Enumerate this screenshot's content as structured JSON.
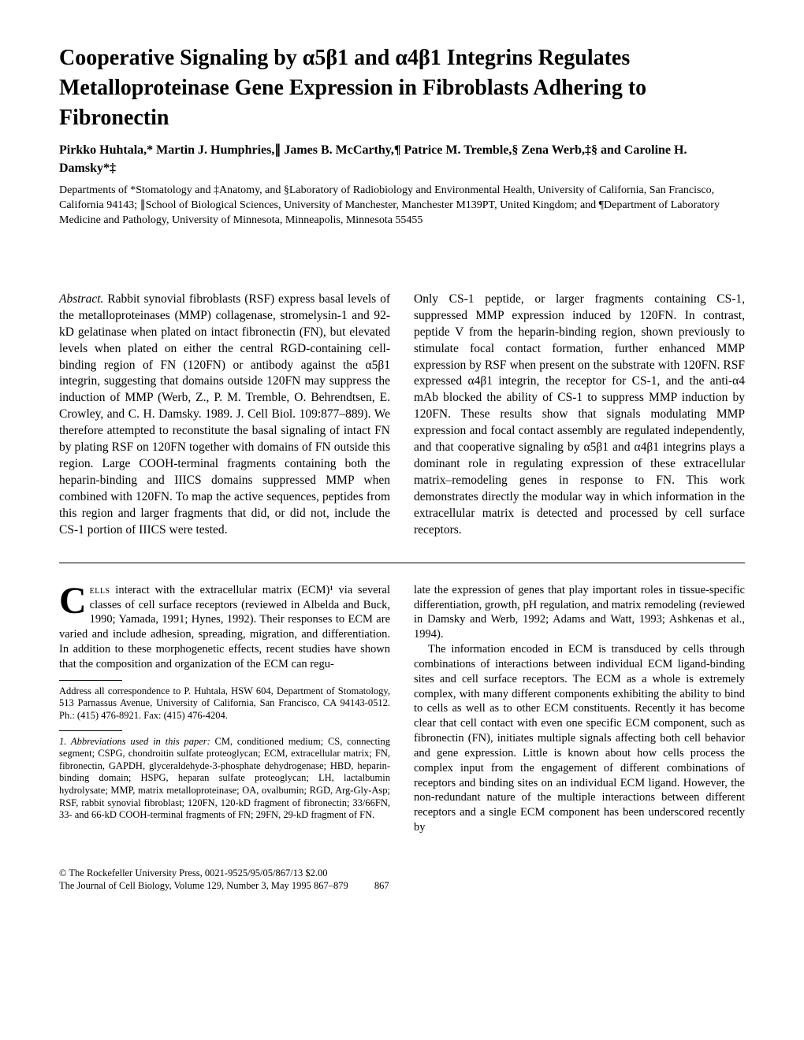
{
  "title": "Cooperative Signaling by α5β1 and α4β1 Integrins Regulates Metalloproteinase Gene Expression in Fibroblasts Adhering to Fibronectin",
  "authors": "Pirkko Huhtala,* Martin J. Humphries,∥ James B. McCarthy,¶ Patrice M. Tremble,§ Zena Werb,‡§ and Caroline H. Damsky*‡",
  "affiliations": "Departments of *Stomatology and ‡Anatomy, and §Laboratory of Radiobiology and Environmental Health, University of California, San Francisco, California 94143; ∥School of Biological Sciences, University of Manchester, Manchester M139PT, United Kingdom; and ¶Department of Laboratory Medicine and Pathology, University of Minnesota, Minneapolis, Minnesota 55455",
  "abstract_label": "Abstract.",
  "abstract_left": " Rabbit synovial fibroblasts (RSF) express basal levels of the metalloproteinases (MMP) collagenase, stromelysin-1 and 92-kD gelatinase when plated on intact fibronectin (FN), but elevated levels when plated on either the central RGD-containing cell-binding region of FN (120FN) or antibody against the α5β1 integrin, suggesting that domains outside 120FN may suppress the induction of MMP (Werb, Z., P. M. Tremble, O. Behrendtsen, E. Crowley, and C. H. Damsky. 1989. J. Cell Biol. 109:877–889). We therefore attempted to reconstitute the basal signaling of intact FN by plating RSF on 120FN together with domains of FN outside this region. Large COOH-terminal fragments containing both the heparin-binding and IIICS domains suppressed MMP when combined with 120FN. To map the active sequences, peptides from this region and larger fragments that did, or did not, include the CS-1 portion of IIICS were tested.",
  "abstract_right": "Only CS-1 peptide, or larger fragments containing CS-1, suppressed MMP expression induced by 120FN. In contrast, peptide V from the heparin-binding region, shown previously to stimulate focal contact formation, further enhanced MMP expression by RSF when present on the substrate with 120FN. RSF expressed α4β1 integrin, the receptor for CS-1, and the anti-α4 mAb blocked the ability of CS-1 to suppress MMP induction by 120FN. These results show that signals modulating MMP expression and focal contact assembly are regulated independently, and that cooperative signaling by α5β1 and α4β1 integrins plays a dominant role in regulating expression of these extracellular matrix–remodeling genes in response to FN. This work demonstrates directly the modular way in which information in the extracellular matrix is detected and processed by cell surface receptors.",
  "body_left_first": "ells",
  "body_left_rest": " interact with the extracellular matrix (ECM)¹ via several classes of cell surface receptors (reviewed in Albelda and Buck, 1990; Yamada, 1991; Hynes, 1992). Their responses to ECM are varied and include adhesion, spreading, migration, and differentiation. In addition to these morphogenetic effects, recent studies have shown that the composition and organization of the ECM can regu-",
  "correspondence": "Address all correspondence to P. Huhtala, HSW 604, Department of Stomatology, 513 Parnassus Avenue, University of California, San Francisco, CA 94143-0512. Ph.: (415) 476-8921. Fax: (415) 476-4204.",
  "abbreviations": "1. Abbreviations used in this paper: CM, conditioned medium; CS, connecting segment; CSPG, chondroitin sulfate proteoglycan; ECM, extracellular matrix; FN, fibronectin, GAPDH, glyceraldehyde-3-phosphate dehydrogenase; HBD, heparin-binding domain; HSPG, heparan sulfate proteoglycan; LH, lactalbumin hydrolysate; MMP, matrix metalloproteinase; OA, ovalbumin; RGD, Arg-Gly-Asp; RSF, rabbit synovial fibroblast; 120FN, 120-kD fragment of fibronectin; 33/66FN, 33- and 66-kD COOH-terminal fragments of FN; 29FN, 29-kD fragment of FN.",
  "body_right_p1": "late the expression of genes that play important roles in tissue-specific differentiation, growth, pH regulation, and matrix remodeling (reviewed in Damsky and Werb, 1992; Adams and Watt, 1993; Ashkenas et al., 1994).",
  "body_right_p2": "The information encoded in ECM is transduced by cells through combinations of interactions between individual ECM ligand-binding sites and cell surface receptors. The ECM as a whole is extremely complex, with many different components exhibiting the ability to bind to cells as well as to other ECM constituents. Recently it has become clear that cell contact with even one specific ECM component, such as fibronectin (FN), initiates multiple signals affecting both cell behavior and gene expression. Little is known about how cells process the complex input from the engagement of different combinations of receptors and binding sites on an individual ECM ligand. However, the non-redundant nature of the multiple interactions between different receptors and a single ECM component has been underscored recently by",
  "footer_copyright": "© The Rockefeller University Press, 0021-9525/95/05/867/13 $2.00",
  "footer_journal": "The Journal of Cell Biology, Volume 129, Number 3, May 1995 867–879",
  "page_number": "867"
}
